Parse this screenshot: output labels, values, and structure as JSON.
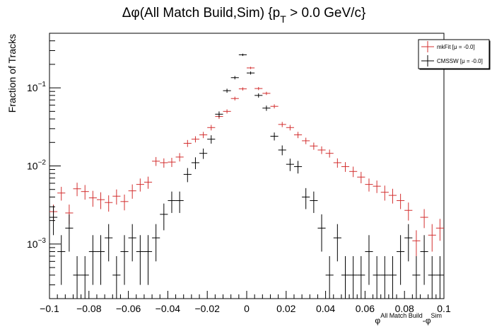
{
  "chart_data": {
    "type": "scatter",
    "title": {
      "main": "Δφ(All Match Build,Sim) {p",
      "subscript": "T",
      "rest": " > 0.0 GeV/c}"
    },
    "ylabel": "Fraction of Tracks",
    "xlabel": {
      "base1": "φ",
      "sup1": "All Match Build",
      "sep": "-φ",
      "sup2": "Sim"
    },
    "xlim": [
      -0.1,
      0.1
    ],
    "ylim": [
      0.0002,
      0.5
    ],
    "yscale": "log",
    "grid": false,
    "legend_position": "top-right",
    "x_ticks": [
      {
        "value": -0.1,
        "label": "−0.1"
      },
      {
        "value": -0.08,
        "label": "−0.08"
      },
      {
        "value": -0.06,
        "label": "−0.06"
      },
      {
        "value": -0.04,
        "label": "−0.04"
      },
      {
        "value": -0.02,
        "label": "−0.02"
      },
      {
        "value": 0,
        "label": "0"
      },
      {
        "value": 0.02,
        "label": "0.02"
      },
      {
        "value": 0.04,
        "label": "0.04"
      },
      {
        "value": 0.06,
        "label": "0.06"
      },
      {
        "value": 0.08,
        "label": "0.08"
      },
      {
        "value": 0.1,
        "label": "0.1"
      }
    ],
    "y_ticks": [
      {
        "value": 0.001,
        "base": "10",
        "exp": "−3"
      },
      {
        "value": 0.01,
        "base": "10",
        "exp": "−2"
      },
      {
        "value": 0.1,
        "base": "10",
        "exp": "−1"
      }
    ],
    "bin_half_width": 0.002,
    "series": [
      {
        "name": "mkFit  [μ = -0.0]",
        "color": "#d32f2f",
        "points": [
          [
            -0.098,
            0.0026,
            0.0006
          ],
          [
            -0.094,
            0.0045,
            0.0009
          ],
          [
            -0.09,
            0.0025,
            0.0007
          ],
          [
            -0.086,
            0.0051,
            0.001
          ],
          [
            -0.082,
            0.0047,
            0.001
          ],
          [
            -0.078,
            0.0039,
            0.0009
          ],
          [
            -0.074,
            0.0037,
            0.0009
          ],
          [
            -0.07,
            0.0034,
            0.0008
          ],
          [
            -0.066,
            0.0041,
            0.0009
          ],
          [
            -0.062,
            0.0035,
            0.0008
          ],
          [
            -0.058,
            0.0048,
            0.001
          ],
          [
            -0.054,
            0.0058,
            0.0011
          ],
          [
            -0.05,
            0.0062,
            0.0011
          ],
          [
            -0.046,
            0.0115,
            0.0015
          ],
          [
            -0.042,
            0.011,
            0.0015
          ],
          [
            -0.038,
            0.0112,
            0.0015
          ],
          [
            -0.034,
            0.013,
            0.0016
          ],
          [
            -0.03,
            0.0195,
            0.002
          ],
          [
            -0.026,
            0.022,
            0.002
          ],
          [
            -0.022,
            0.025,
            0.0023
          ],
          [
            -0.018,
            0.031,
            0.0025
          ],
          [
            -0.014,
            0.043,
            0.003
          ],
          [
            -0.01,
            0.05,
            0.003
          ],
          [
            -0.006,
            0.073,
            0.004
          ],
          [
            -0.002,
            0.097,
            0.0045
          ],
          [
            0.002,
            0.18,
            0.006
          ],
          [
            0.006,
            0.098,
            0.0045
          ],
          [
            0.01,
            0.085,
            0.004
          ],
          [
            0.014,
            0.058,
            0.0035
          ],
          [
            0.018,
            0.034,
            0.0026
          ],
          [
            0.022,
            0.031,
            0.0025
          ],
          [
            0.026,
            0.025,
            0.0023
          ],
          [
            0.03,
            0.021,
            0.002
          ],
          [
            0.034,
            0.018,
            0.0019
          ],
          [
            0.038,
            0.016,
            0.0018
          ],
          [
            0.042,
            0.0145,
            0.0017
          ],
          [
            0.046,
            0.011,
            0.0015
          ],
          [
            0.05,
            0.0098,
            0.0014
          ],
          [
            0.054,
            0.0085,
            0.0013
          ],
          [
            0.058,
            0.0072,
            0.0012
          ],
          [
            0.062,
            0.0058,
            0.0011
          ],
          [
            0.066,
            0.0055,
            0.001
          ],
          [
            0.07,
            0.0046,
            0.001
          ],
          [
            0.074,
            0.0042,
            0.0009
          ],
          [
            0.078,
            0.0036,
            0.0008
          ],
          [
            0.082,
            0.0027,
            0.0007
          ],
          [
            0.086,
            0.0011,
            0.0004
          ],
          [
            0.09,
            0.0022,
            0.0006
          ],
          [
            0.094,
            0.0013,
            0.0005
          ],
          [
            0.098,
            0.0016,
            0.0005
          ]
        ]
      },
      {
        "name": "CMSSW  [μ = -0.0]",
        "color": "#000000",
        "points": [
          [
            -0.098,
            0.0022,
            0.0009
          ],
          [
            -0.094,
            0.0008,
            0.0005
          ],
          [
            -0.09,
            0.0016,
            0.0008
          ],
          [
            -0.086,
            0.0004,
            0.0003
          ],
          [
            -0.082,
            0.0004,
            0.0003
          ],
          [
            -0.078,
            0.0008,
            0.0005
          ],
          [
            -0.074,
            0.0008,
            0.0005
          ],
          [
            -0.07,
            0.0012,
            0.0006
          ],
          [
            -0.066,
            0.0004,
            0.0003
          ],
          [
            -0.062,
            0.0008,
            0.0005
          ],
          [
            -0.058,
            0.0012,
            0.0006
          ],
          [
            -0.054,
            0.0008,
            0.0005
          ],
          [
            -0.05,
            0.0008,
            0.0005
          ],
          [
            -0.046,
            0.0012,
            0.0006
          ],
          [
            -0.042,
            0.0024,
            0.0009
          ],
          [
            -0.038,
            0.0036,
            0.0011
          ],
          [
            -0.034,
            0.0036,
            0.0011
          ],
          [
            -0.03,
            0.0078,
            0.0016
          ],
          [
            -0.026,
            0.011,
            0.0019
          ],
          [
            -0.022,
            0.0145,
            0.0022
          ],
          [
            -0.018,
            0.022,
            0.0027
          ],
          [
            -0.014,
            0.046,
            0.0039
          ],
          [
            -0.01,
            0.092,
            0.0055
          ],
          [
            -0.006,
            0.135,
            0.0067
          ],
          [
            -0.002,
            0.265,
            0.009
          ],
          [
            0.002,
            0.155,
            0.007
          ],
          [
            0.006,
            0.08,
            0.005
          ],
          [
            0.01,
            0.055,
            0.0042
          ],
          [
            0.014,
            0.024,
            0.0028
          ],
          [
            0.018,
            0.016,
            0.0023
          ],
          [
            0.022,
            0.0105,
            0.0019
          ],
          [
            0.026,
            0.0098,
            0.0018
          ],
          [
            0.03,
            0.004,
            0.0012
          ],
          [
            0.034,
            0.0036,
            0.0011
          ],
          [
            0.038,
            0.0016,
            0.0008
          ],
          [
            0.042,
            0.0004,
            0.0003
          ],
          [
            0.046,
            0.0012,
            0.0006
          ],
          [
            0.05,
            0.0004,
            0.0003
          ],
          [
            0.054,
            0.0004,
            0.0003
          ],
          [
            0.058,
            0.0004,
            0.0003
          ],
          [
            0.062,
            0.0008,
            0.0005
          ],
          [
            0.066,
            0.0004,
            0.0003
          ],
          [
            0.07,
            0.0004,
            0.0003
          ],
          [
            0.074,
            0.0004,
            0.0003
          ],
          [
            0.078,
            0.0008,
            0.0005
          ],
          [
            0.082,
            0.0012,
            0.0006
          ],
          [
            0.086,
            0.0004,
            0.0003
          ],
          [
            0.09,
            0.0008,
            0.0005
          ],
          [
            0.094,
            0.0004,
            0.0003
          ],
          [
            0.098,
            0.0004,
            0.0003
          ]
        ]
      }
    ]
  }
}
